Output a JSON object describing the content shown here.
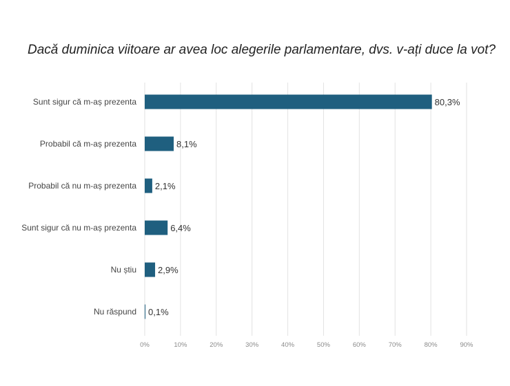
{
  "chart_data": {
    "type": "bar",
    "orientation": "horizontal",
    "title": "Dacă duminica viitoare ar avea loc alegerile parlamentare, dvs. v-ați duce la vot?",
    "categories": [
      "Sunt sigur că m-aș prezenta",
      "Probabil că m-aș prezenta",
      "Probabil că nu m-aș prezenta",
      "Sunt sigur că nu m-aș prezenta",
      "Nu știu",
      "Nu răspund"
    ],
    "values": [
      80.3,
      8.1,
      2.1,
      6.4,
      2.9,
      0.1
    ],
    "data_labels": [
      "80,3%",
      "8,1%",
      "2,1%",
      "6,4%",
      "2,9%",
      "0,1%"
    ],
    "xlim": [
      0,
      90
    ],
    "x_ticks": [
      0,
      10,
      20,
      30,
      40,
      50,
      60,
      70,
      80,
      90
    ],
    "x_tick_labels": [
      "0%",
      "10%",
      "20%",
      "30%",
      "40%",
      "50%",
      "60%",
      "70%",
      "80%",
      "90%"
    ],
    "xlabel": "",
    "ylabel": "",
    "grid": "vertical",
    "legend": "none",
    "bar_color": "#1f5f7f"
  }
}
